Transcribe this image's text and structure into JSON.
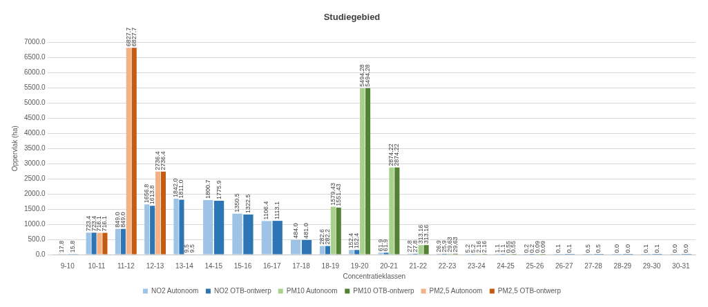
{
  "chart_data": {
    "type": "bar",
    "title": "Studiegebied",
    "xlabel": "Concentratieklassen",
    "ylabel": "Oppervlak (ha)",
    "categories": [
      "9-10",
      "10-11",
      "11-12",
      "12-13",
      "13-14",
      "14-15",
      "15-16",
      "16-17",
      "17-18",
      "18-19",
      "19-20",
      "20-21",
      "21-22",
      "22-23",
      "23-24",
      "24-25",
      "25-26",
      "26-27",
      "27-28",
      "28-29",
      "29-30",
      "30-31"
    ],
    "series": [
      {
        "name": "NO2 Autonoom",
        "color": "#9dc3e6",
        "values": [
          17.8,
          723.4,
          849.0,
          1656.8,
          1842.0,
          1800.7,
          1350.5,
          1106.4,
          484.0,
          282.6,
          152.4,
          61.9,
          27.8,
          26.9,
          5.2,
          1.1,
          0.2,
          0.1,
          0.5,
          0.04,
          0.1,
          0.04
        ],
        "value_labels": [
          "17.8",
          "723.4",
          "849.0",
          "1656.8",
          "1842.0",
          "1800.7",
          "1350.5",
          "1106.4",
          "484.0",
          "282.6",
          "152.4",
          "61.9",
          "27.8",
          "26.9",
          "5.2",
          "1.1",
          "0.2",
          "0.1",
          "0.5",
          "0.0",
          "0.1",
          "0.0"
        ]
      },
      {
        "name": "NO2 OTB-ontwerp",
        "color": "#2e75b6",
        "values": [
          15.8,
          723.4,
          849.0,
          1613.8,
          1811.0,
          1775.9,
          1322.5,
          1113.1,
          481.0,
          282.2,
          152.4,
          61.9,
          27.8,
          25.9,
          5.2,
          1.1,
          0.2,
          0.1,
          0.5,
          0.04,
          0.1,
          0.04
        ],
        "value_labels": [
          "15.8",
          "723.4",
          "849.0",
          "1613.8",
          "1811.0",
          "1775.9",
          "1322.5",
          "1113.1",
          "481.0",
          "282.2",
          "152.4",
          "61.9",
          "27.8",
          "25.9",
          "5.2",
          "1.1",
          "0.2",
          "0.1",
          "0.5",
          "0.0",
          "0.1",
          "0.0"
        ]
      },
      {
        "name": "PM10 Autonoom",
        "color": "#a9d18e",
        "values": [
          null,
          null,
          null,
          null,
          null,
          null,
          null,
          null,
          null,
          1579.43,
          5494.28,
          2874.22,
          313.16,
          29.63,
          2.16,
          0.55,
          0.09,
          null,
          null,
          null,
          null,
          null
        ],
        "value_labels": [
          null,
          null,
          null,
          null,
          null,
          null,
          null,
          null,
          null,
          "1579.43",
          "5494.28",
          "2874.22",
          "313.16",
          "29.63",
          "2.16",
          "0.55",
          "0.09",
          null,
          null,
          null,
          null,
          null
        ]
      },
      {
        "name": "PM10 OTB-ontwerp",
        "color": "#548235",
        "values": [
          null,
          null,
          null,
          null,
          null,
          null,
          null,
          null,
          null,
          1551.43,
          5494.28,
          2874.22,
          313.16,
          29.63,
          2.16,
          0.55,
          0.09,
          null,
          null,
          null,
          null,
          null
        ],
        "value_labels": [
          null,
          null,
          null,
          null,
          null,
          null,
          null,
          null,
          null,
          "1551.43",
          "5494.28",
          "2874.22",
          "313.16",
          "29.63",
          "2.16",
          "0.55",
          "0.09",
          null,
          null,
          null,
          null,
          null
        ]
      },
      {
        "name": "PM2,5 Autonoom",
        "color": "#f4b183",
        "values": [
          null,
          716.1,
          6827.7,
          2736.4,
          9.5,
          null,
          null,
          null,
          null,
          null,
          null,
          null,
          null,
          null,
          null,
          null,
          null,
          null,
          null,
          null,
          null,
          null
        ],
        "value_labels": [
          null,
          "716.1",
          "6827.7",
          "2736.4",
          "9.5",
          null,
          null,
          null,
          null,
          null,
          null,
          null,
          null,
          null,
          null,
          null,
          null,
          null,
          null,
          null,
          null,
          null
        ]
      },
      {
        "name": "PM2,5 OTB-ontwerp",
        "color": "#c55a11",
        "values": [
          null,
          716.1,
          6827.7,
          2736.4,
          9.5,
          null,
          null,
          null,
          null,
          null,
          null,
          null,
          null,
          null,
          null,
          null,
          null,
          null,
          null,
          null,
          null,
          null
        ],
        "value_labels": [
          null,
          "716.1",
          "6827.7",
          "2736.4",
          "9.5",
          null,
          null,
          null,
          null,
          null,
          null,
          null,
          null,
          null,
          null,
          null,
          null,
          null,
          null,
          null,
          null,
          null
        ]
      }
    ],
    "ylim": [
      0,
      7000
    ],
    "yticks": [
      {
        "value": 0,
        "label": "0.0"
      },
      {
        "value": 500,
        "label": "500.0"
      },
      {
        "value": 1000,
        "label": "1000.0"
      },
      {
        "value": 1500,
        "label": "1500.0"
      },
      {
        "value": 2000,
        "label": "2000.0"
      },
      {
        "value": 2500,
        "label": "2500.0"
      },
      {
        "value": 3000,
        "label": "3000.0"
      },
      {
        "value": 3500,
        "label": "3500.0"
      },
      {
        "value": 4000,
        "label": "4000.0"
      },
      {
        "value": 4500,
        "label": "4500.0"
      },
      {
        "value": 5000,
        "label": "5000.0"
      },
      {
        "value": 5500,
        "label": "5500.0"
      },
      {
        "value": 6000,
        "label": "6000.0"
      },
      {
        "value": 6500,
        "label": "6500.0"
      },
      {
        "value": 7000,
        "label": "7000.0"
      }
    ],
    "grid": "y",
    "legend": "bottom"
  }
}
